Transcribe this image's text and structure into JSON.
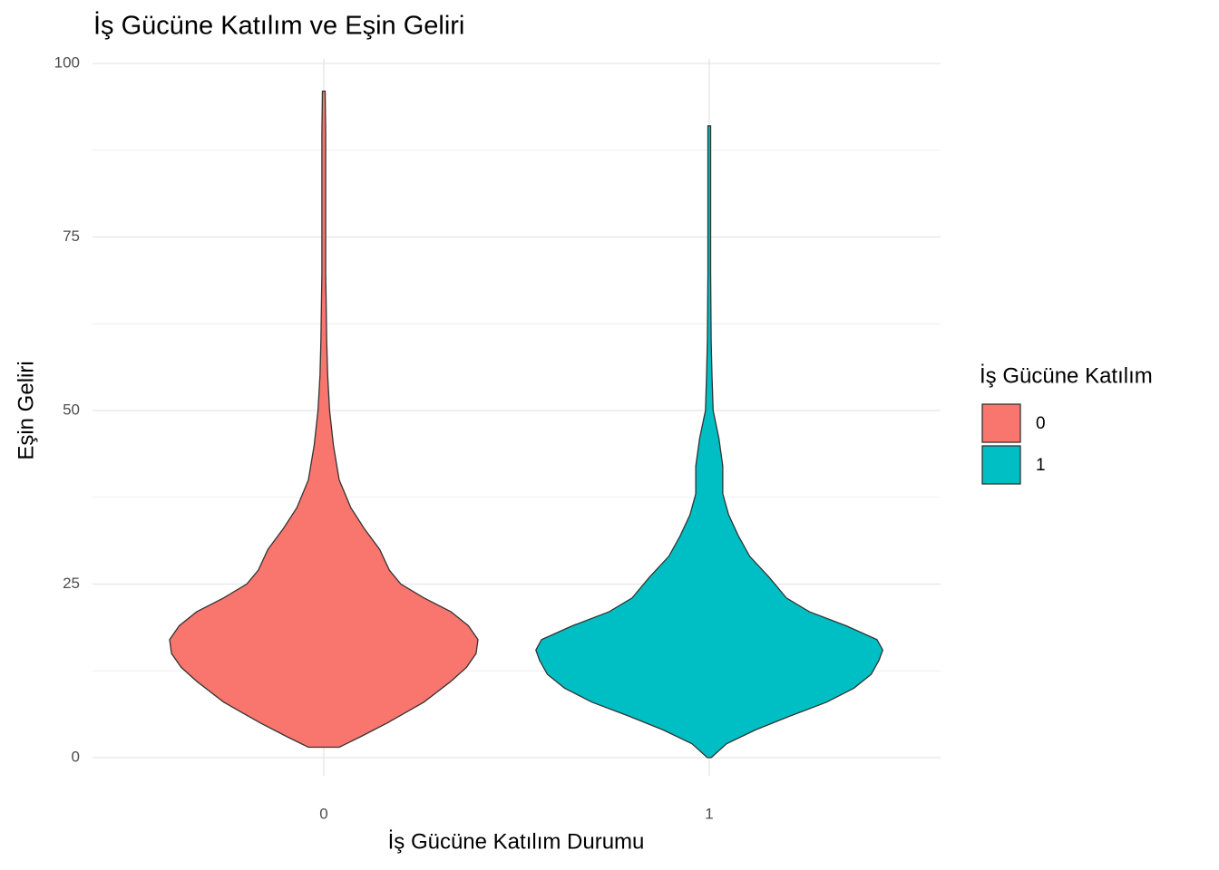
{
  "chart_data": {
    "type": "violin",
    "title": "İş Gücüne Katılım ve Eşin Geliri",
    "x_label": "İş Gücüne Katılım Durumu",
    "y_label": "Eşin Geliri",
    "legend_title": "İş Gücüne Katılım",
    "legend_position": "right",
    "categories": [
      "0",
      "1"
    ],
    "ylim": [
      0,
      100
    ],
    "yticks": [
      0,
      25,
      50,
      75,
      100
    ],
    "minor_yticks": [
      12.5,
      37.5,
      62.5,
      87.5
    ],
    "grid": true,
    "series": [
      {
        "name": "0",
        "color": "#f8766d",
        "y": [
          1.5,
          3,
          5,
          8,
          11,
          13,
          15,
          17,
          19,
          21,
          23,
          25,
          27,
          30,
          33,
          36,
          40,
          45,
          50,
          55,
          60,
          70,
          80,
          90,
          96
        ],
        "widths": [
          0.08,
          0.19,
          0.33,
          0.52,
          0.66,
          0.74,
          0.79,
          0.8,
          0.75,
          0.66,
          0.52,
          0.4,
          0.34,
          0.29,
          0.21,
          0.14,
          0.08,
          0.05,
          0.03,
          0.02,
          0.015,
          0.01,
          0.01,
          0.01,
          0.007
        ]
      },
      {
        "name": "1",
        "color": "#00bfc4",
        "y": [
          0,
          2,
          4,
          6,
          8,
          10,
          12,
          14,
          15.5,
          17,
          19,
          21,
          23,
          26,
          29,
          32,
          35,
          38,
          42,
          46,
          50,
          55,
          60,
          70,
          80,
          91
        ],
        "widths": [
          0.01,
          0.09,
          0.24,
          0.42,
          0.61,
          0.75,
          0.84,
          0.88,
          0.9,
          0.87,
          0.71,
          0.52,
          0.4,
          0.31,
          0.21,
          0.15,
          0.1,
          0.07,
          0.07,
          0.05,
          0.02,
          0.014,
          0.01,
          0.007,
          0.007,
          0.007
        ]
      }
    ]
  }
}
